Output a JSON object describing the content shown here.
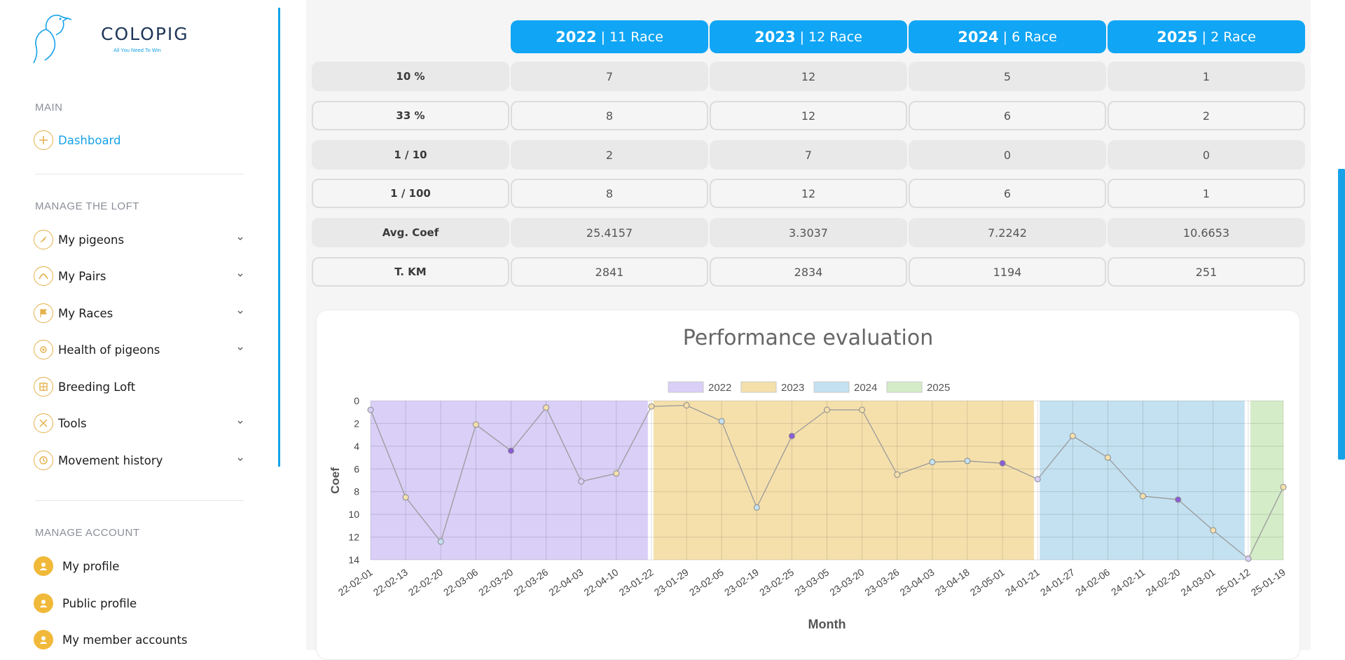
{
  "app": {
    "logo_name": "COLOPIG",
    "logo_tagline": "All You Need To Win"
  },
  "sidebar": {
    "sections": [
      {
        "title": "MAIN"
      },
      {
        "title": "MANAGE THE LOFT"
      },
      {
        "title": "MANAGE ACCOUNT"
      }
    ],
    "items": [
      {
        "label": "Dashboard",
        "icon": "plus-circle-icon",
        "active": true
      },
      {
        "label": "My pigeons",
        "icon": "pigeon-icon"
      },
      {
        "label": "My Pairs",
        "icon": "pair-icon"
      },
      {
        "label": "My Races",
        "icon": "flag-icon"
      },
      {
        "label": "Health of pigeons",
        "icon": "health-icon"
      },
      {
        "label": "Breeding Loft",
        "icon": "loft-icon"
      },
      {
        "label": "Tools",
        "icon": "tools-icon"
      },
      {
        "label": "Movement history",
        "icon": "clock-icon"
      },
      {
        "label": "My profile",
        "icon": "user-icon"
      },
      {
        "label": "Public profile",
        "icon": "user-icon"
      },
      {
        "label": "My member accounts",
        "icon": "user-icon"
      }
    ]
  },
  "stats": {
    "columns": [
      {
        "year": "2022",
        "races": "11 Race"
      },
      {
        "year": "2023",
        "races": "12 Race"
      },
      {
        "year": "2024",
        "races": "6 Race"
      },
      {
        "year": "2025",
        "races": "2 Race"
      }
    ],
    "rows": [
      {
        "label": "10 %",
        "values": [
          "7",
          "12",
          "5",
          "1"
        ]
      },
      {
        "label": "33 %",
        "values": [
          "8",
          "12",
          "6",
          "2"
        ]
      },
      {
        "label": "1 / 10",
        "values": [
          "2",
          "7",
          "0",
          "0"
        ]
      },
      {
        "label": "1 / 100",
        "values": [
          "8",
          "12",
          "6",
          "1"
        ]
      },
      {
        "label": "Avg. Coef",
        "values": [
          "25.4157",
          "3.3037",
          "7.2242",
          "10.6653"
        ]
      },
      {
        "label": "T. KM",
        "values": [
          "2841",
          "2834",
          "1194",
          "251"
        ]
      }
    ]
  },
  "chart_data": {
    "type": "line",
    "title": "Performance evaluation",
    "xlabel": "Month",
    "ylabel": "Coef",
    "y_reversed": true,
    "ylim": [
      0,
      14
    ],
    "yticks": [
      0,
      2,
      4,
      6,
      8,
      10,
      12,
      14
    ],
    "grid": true,
    "legend_position": "top",
    "legend": [
      {
        "name": "2022",
        "color": "#d9cff7"
      },
      {
        "name": "2023",
        "color": "#f5e0ac"
      },
      {
        "name": "2024",
        "color": "#c3e1f1"
      },
      {
        "name": "2025",
        "color": "#d5ecc8"
      }
    ],
    "x": [
      "22-02-01",
      "22-02-13",
      "22-02-20",
      "22-03-06",
      "22-03-20",
      "22-03-26",
      "22-04-03",
      "22-04-10",
      "23-01-22",
      "23-01-29",
      "23-02-05",
      "23-02-19",
      "23-02-25",
      "23-03-05",
      "23-03-20",
      "23-03-26",
      "23-04-03",
      "23-04-18",
      "23-05-01",
      "24-01-21",
      "24-01-27",
      "24-02-06",
      "24-02-11",
      "24-02-20",
      "24-03-01",
      "25-01-12",
      "25-01-19"
    ],
    "y": [
      0.8,
      8.5,
      12.4,
      2.1,
      4.4,
      0.6,
      7.1,
      6.4,
      0.5,
      0.4,
      1.8,
      9.4,
      3.1,
      0.8,
      0.8,
      6.5,
      5.4,
      5.3,
      5.5,
      6.9,
      3.1,
      5.0,
      8.4,
      8.7,
      11.4,
      13.9,
      7.6
    ],
    "point_colors": [
      "#d9cff7",
      "#f5e0ac",
      "#c3e1f1",
      "#f5e0ac",
      "#8b5cd6",
      "#f5e0ac",
      "#d9cff7",
      "#f5e0ac",
      "#f5e0ac",
      "#f5e0ac",
      "#c3e1f1",
      "#c3e1f1",
      "#8b5cd6",
      "#f5e0ac",
      "#f5e0ac",
      "#f5e0ac",
      "#c3e1f1",
      "#c3e1f1",
      "#8b5cd6",
      "#d9cff7",
      "#f5e0ac",
      "#f5e0ac",
      "#f5e0ac",
      "#8b5cd6",
      "#f5e0ac",
      "#d9cff7",
      "#f5e0ac"
    ],
    "bands": [
      {
        "name": "2022",
        "start": "22-02-01",
        "end": "22-04-10"
      },
      {
        "name": "2023",
        "start": "23-01-22",
        "end": "23-05-01"
      },
      {
        "name": "2024",
        "start": "24-01-21",
        "end": "24-03-01"
      },
      {
        "name": "2025",
        "start": "25-01-12",
        "end": "25-01-19"
      }
    ]
  }
}
